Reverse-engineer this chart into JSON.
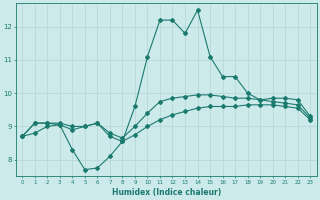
{
  "xlabel": "Humidex (Indice chaleur)",
  "x": [
    0,
    1,
    2,
    3,
    4,
    5,
    6,
    7,
    8,
    9,
    10,
    11,
    12,
    13,
    14,
    15,
    16,
    17,
    18,
    19,
    20,
    21,
    22,
    23
  ],
  "line_max": [
    8.7,
    9.1,
    9.1,
    9.05,
    8.3,
    7.7,
    7.75,
    8.1,
    8.55,
    9.6,
    11.1,
    12.2,
    12.2,
    11.8,
    12.5,
    11.1,
    10.5,
    10.5,
    10.0,
    9.8,
    9.85,
    9.85,
    9.8,
    9.3
  ],
  "line_mean": [
    8.7,
    9.1,
    9.1,
    9.1,
    9.0,
    9.0,
    9.1,
    8.8,
    8.65,
    9.0,
    9.4,
    9.75,
    9.85,
    9.9,
    9.95,
    9.95,
    9.9,
    9.85,
    9.85,
    9.8,
    9.75,
    9.7,
    9.65,
    9.25
  ],
  "line_min": [
    8.7,
    8.8,
    9.0,
    9.05,
    8.9,
    9.0,
    9.1,
    8.7,
    8.55,
    8.75,
    9.0,
    9.2,
    9.35,
    9.45,
    9.55,
    9.6,
    9.6,
    9.6,
    9.65,
    9.65,
    9.65,
    9.6,
    9.55,
    9.2
  ],
  "bg_color": "#cdeaea",
  "line_color": "#1a7a6e",
  "grid_color": "#b8d8d8",
  "ylim": [
    7.5,
    12.7
  ],
  "xlim": [
    -0.5,
    23.5
  ],
  "yticks": [
    8,
    9,
    10,
    11,
    12
  ],
  "xticks": [
    0,
    1,
    2,
    3,
    4,
    5,
    6,
    7,
    8,
    9,
    10,
    11,
    12,
    13,
    14,
    15,
    16,
    17,
    18,
    19,
    20,
    21,
    22,
    23
  ],
  "markersize": 2.0,
  "linewidth": 0.8
}
